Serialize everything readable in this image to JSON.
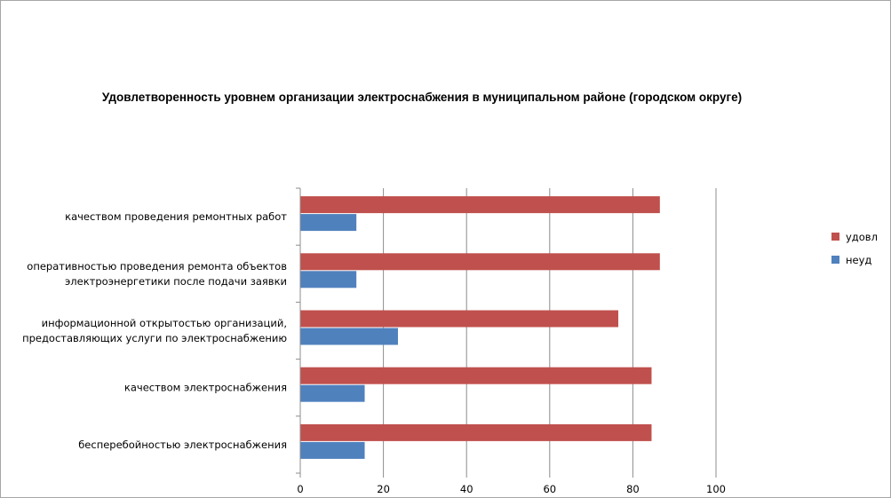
{
  "chart_data": {
    "type": "bar",
    "orientation": "horizontal",
    "title": "Удовлетворенность уровнем организации электроснабжения в муниципальном районе (городском округе)",
    "categories": [
      [
        "качеством проведения  ремонтных работ"
      ],
      [
        "оперативностью  проведения  ремонта объектов",
        "электроэнергетики  после подачи заявки"
      ],
      [
        "информационной открытостью организаций,",
        "предоставляющих услуги по электроснабжению"
      ],
      [
        "качеством электроснабжения"
      ],
      [
        "бесперебойностью  электроснабжения"
      ]
    ],
    "series": [
      {
        "name": "удовл",
        "color": "#c0504d",
        "values": [
          86.5,
          86.5,
          76.5,
          84.5,
          84.5
        ]
      },
      {
        "name": "неуд",
        "color": "#4f81bd",
        "values": [
          13.5,
          13.5,
          23.5,
          15.5,
          15.5
        ]
      }
    ],
    "xlim": [
      0,
      100
    ],
    "xticks": [
      "0",
      "20",
      "40",
      "60",
      "80",
      "100"
    ],
    "grid": true,
    "legend_position": "right"
  }
}
